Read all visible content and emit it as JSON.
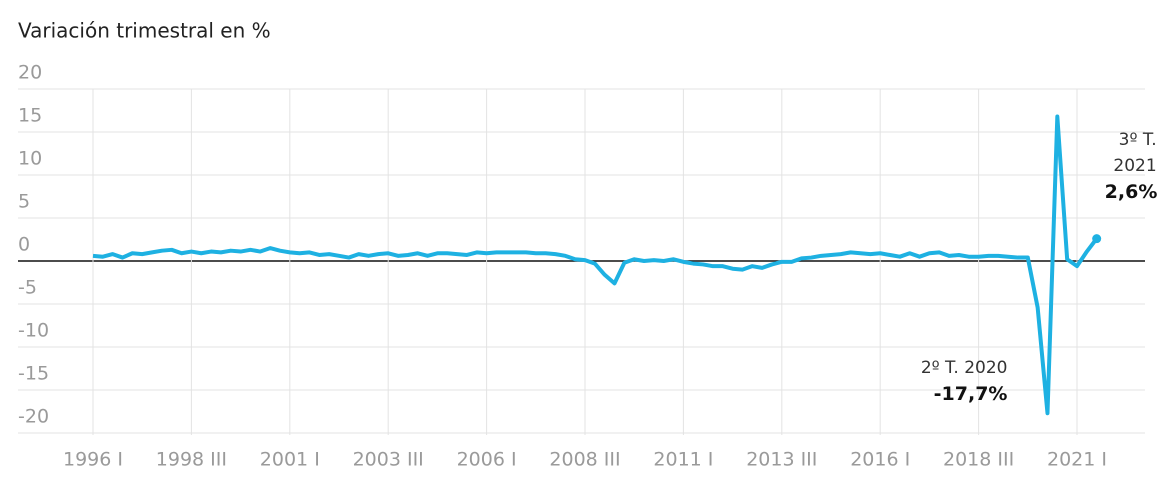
{
  "chart_data": {
    "type": "line",
    "subtitle": "Variación trimestral en %",
    "categories": [
      "1996 I",
      null,
      null,
      null,
      null,
      null,
      null,
      null,
      null,
      null,
      "1998 III",
      null,
      null,
      null,
      null,
      null,
      null,
      null,
      null,
      null,
      "2001 I",
      null,
      null,
      null,
      null,
      null,
      null,
      null,
      null,
      null,
      "2003 III",
      null,
      null,
      null,
      null,
      null,
      null,
      null,
      null,
      null,
      "2006 I",
      null,
      null,
      null,
      null,
      null,
      null,
      null,
      null,
      null,
      "2008 III",
      null,
      null,
      null,
      null,
      null,
      null,
      null,
      null,
      null,
      "2011 I",
      null,
      null,
      null,
      null,
      null,
      null,
      null,
      null,
      null,
      "2013 III",
      null,
      null,
      null,
      null,
      null,
      null,
      null,
      null,
      null,
      "2016 I",
      null,
      null,
      null,
      null,
      null,
      null,
      null,
      null,
      null,
      "2018 III",
      null,
      null,
      null,
      null,
      null,
      null,
      null,
      null,
      null,
      "2021 I",
      null,
      null
    ],
    "values": [
      0.6,
      0.5,
      0.8,
      0.4,
      0.9,
      0.8,
      1.0,
      1.2,
      1.3,
      0.9,
      1.1,
      0.9,
      1.1,
      1.0,
      1.2,
      1.1,
      1.3,
      1.1,
      1.5,
      1.2,
      1.0,
      0.9,
      1.0,
      0.7,
      0.8,
      0.6,
      0.4,
      0.8,
      0.6,
      0.8,
      0.9,
      0.6,
      0.7,
      0.9,
      0.6,
      0.9,
      0.9,
      0.8,
      0.7,
      1.0,
      0.9,
      1.0,
      1.0,
      1.0,
      1.0,
      0.9,
      0.9,
      0.8,
      0.6,
      0.2,
      0.1,
      -0.3,
      -1.6,
      -2.6,
      -0.2,
      0.2,
      0.0,
      0.1,
      0.0,
      0.2,
      -0.1,
      -0.3,
      -0.4,
      -0.6,
      -0.6,
      -0.9,
      -1.0,
      -0.6,
      -0.8,
      -0.4,
      -0.1,
      -0.1,
      0.3,
      0.4,
      0.6,
      0.7,
      0.8,
      1.0,
      0.9,
      0.8,
      0.9,
      0.7,
      0.5,
      0.9,
      0.5,
      0.9,
      1.0,
      0.6,
      0.7,
      0.5,
      0.5,
      0.6,
      0.6,
      0.5,
      0.4,
      0.4,
      -5.4,
      -17.7,
      16.8,
      0.2,
      -0.6,
      1.1,
      2.6
    ],
    "value_labels": [
      null,
      null,
      null,
      null,
      null,
      null,
      null,
      null,
      null,
      null,
      null,
      null,
      null,
      null,
      null,
      null,
      null,
      null,
      null,
      null,
      null,
      null,
      null,
      null,
      null,
      null,
      null,
      null,
      null,
      null,
      null,
      null,
      null,
      null,
      null,
      null,
      null,
      null,
      null,
      null,
      null,
      null,
      null,
      null,
      null,
      null,
      null,
      null,
      null,
      null,
      null,
      null,
      null,
      null,
      null,
      null,
      null,
      null,
      null,
      null,
      null,
      null,
      null,
      null,
      null,
      null,
      null,
      null,
      null,
      null,
      null,
      null,
      null,
      null,
      null,
      null,
      null,
      null,
      null,
      null,
      null,
      null,
      null,
      null,
      null,
      null,
      null,
      null,
      null,
      null,
      null,
      null,
      null,
      null,
      null,
      null,
      null,
      "-17,7%",
      null,
      null,
      null,
      null,
      "2,6%"
    ],
    "annotations": [
      null,
      null,
      null,
      null,
      null,
      null,
      null,
      null,
      null,
      null,
      null,
      null,
      null,
      null,
      null,
      null,
      null,
      null,
      null,
      null,
      null,
      null,
      null,
      null,
      null,
      null,
      null,
      null,
      null,
      null,
      null,
      null,
      null,
      null,
      null,
      null,
      null,
      null,
      null,
      null,
      null,
      null,
      null,
      null,
      null,
      null,
      null,
      null,
      null,
      null,
      null,
      null,
      null,
      null,
      null,
      null,
      null,
      null,
      null,
      null,
      null,
      null,
      null,
      null,
      null,
      null,
      null,
      null,
      null,
      null,
      null,
      null,
      null,
      null,
      null,
      null,
      null,
      null,
      null,
      null,
      null,
      null,
      null,
      null,
      null,
      null,
      null,
      null,
      null,
      null,
      null,
      null,
      null,
      null,
      null,
      null,
      null,
      "2º T. 2020",
      null,
      null,
      null,
      null,
      "3º T. 2021"
    ],
    "color": "#1eb1e2",
    "ylim": [
      -20,
      20
    ],
    "yticks": [
      -20,
      -15,
      -10,
      -5,
      0,
      5,
      10,
      15,
      20
    ],
    "grid": true
  }
}
